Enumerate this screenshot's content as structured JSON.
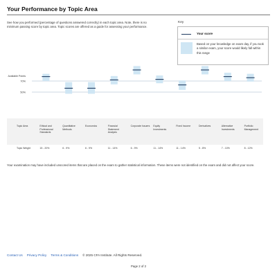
{
  "page": {
    "title": "Your Performance by Topic Area",
    "intro": "See how you performed (percentage of questions answered correctly) in each topic area. Note, there is no minimum passing score by topic area. Topic scores are offered as a guide for assessing your performance.",
    "exam_note": "Your examination may have included unscored items that are placed on the exam to gather statistical information. These items were not identified on the exam and did not affect your score.",
    "page_number": "Page 2 of 2"
  },
  "key": {
    "title": "Key",
    "score_label": "Your score",
    "range_text": "Based on your knowledge on exam day, if you took a similar exam, your score would likely fall within this range"
  },
  "table": {
    "topic_area_label": "Topic Area",
    "topic_weight_label": "Topic Weight"
  },
  "colors": {
    "range_fill": "#cfe6f4",
    "score_line": "#1f3a5f",
    "reference_line": "#9bb0c8"
  },
  "chart_data": {
    "type": "range",
    "y_axis_label": "Available Points",
    "reference_lines": [
      {
        "label": "70%",
        "value": 70
      },
      {
        "label": "50%",
        "value": 50
      }
    ],
    "ylim": [
      25,
      100
    ],
    "topics": [
      {
        "name": "Ethical and Professional Standards",
        "weight": "15 - 20%",
        "score": 78,
        "low": 70,
        "high": 83
      },
      {
        "name": "Quantitative Methods",
        "weight": "6 - 9%",
        "score": 57,
        "low": 47,
        "high": 68
      },
      {
        "name": "Economics",
        "weight": "6 - 9%",
        "score": 57,
        "low": 47,
        "high": 68
      },
      {
        "name": "Financial Statement Analysis",
        "weight": "11 - 14%",
        "score": 72,
        "low": 64,
        "high": 79
      },
      {
        "name": "Corporate Issuers",
        "weight": "6 - 9%",
        "score": 90,
        "low": 82,
        "high": 97
      },
      {
        "name": "Equity Investments",
        "weight": "11 - 14%",
        "score": 73,
        "low": 66,
        "high": 80
      },
      {
        "name": "Fixed Income",
        "weight": "11 - 14%",
        "score": 63,
        "low": 54,
        "high": 71
      },
      {
        "name": "Derivatives",
        "weight": "5 - 8%",
        "score": 90,
        "low": 82,
        "high": 97
      },
      {
        "name": "Alternative Investments",
        "weight": "7 - 10%",
        "score": 78,
        "low": 70,
        "high": 85
      },
      {
        "name": "Portfolio Management",
        "weight": "8 - 12%",
        "score": 76,
        "low": 69,
        "high": 83
      }
    ]
  },
  "footer": {
    "contact": "Contact Us",
    "privacy": "Privacy Policy",
    "terms": "Terms & Conditions",
    "copyright": "© 2025 CFA Institute.  All Rights Reserved."
  }
}
